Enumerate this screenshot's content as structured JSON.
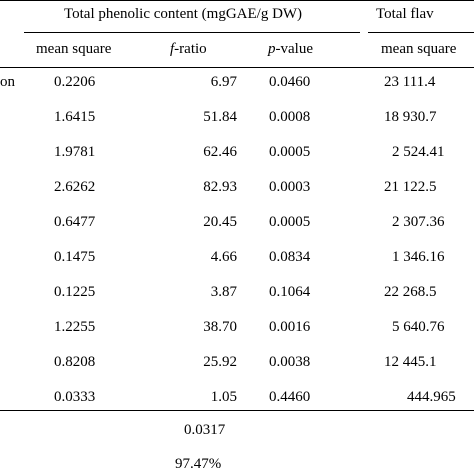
{
  "header": {
    "group_phenolic": "Total phenolic content (mgGAE/g DW)",
    "group_flavonoid": "Total flav",
    "col_ms1": "mean square",
    "col_f_italic": "f",
    "col_f_rest": "-ratio",
    "col_p_italic": "p",
    "col_p_rest": "-value",
    "col_ms2": "mean square"
  },
  "rows": [
    {
      "label": "on",
      "ms": "0.2206",
      "f": "6.97",
      "p": "0.0460",
      "ms2": "23 111.4"
    },
    {
      "label": "",
      "ms": "1.6415",
      "f": "51.84",
      "p": "0.0008",
      "ms2": "18 930.7"
    },
    {
      "label": "",
      "ms": "1.9781",
      "f": "62.46",
      "p": "0.0005",
      "ms2": "2 524.41"
    },
    {
      "label": "",
      "ms": "2.6262",
      "f": "82.93",
      "p": "0.0003",
      "ms2": "21 122.5"
    },
    {
      "label": "",
      "ms": "0.6477",
      "f": "20.45",
      "p": "0.0005",
      "ms2": "2 307.36"
    },
    {
      "label": "",
      "ms": "0.1475",
      "f": "4.66",
      "p": "0.0834",
      "ms2": "1 346.16"
    },
    {
      "label": "",
      "ms": "0.1225",
      "f": "3.87",
      "p": "0.1064",
      "ms2": "22 268.5"
    },
    {
      "label": "",
      "ms": "1.2255",
      "f": "38.70",
      "p": "0.0016",
      "ms2": "5 640.76"
    },
    {
      "label": "",
      "ms": "0.8208",
      "f": "25.92",
      "p": "0.0038",
      "ms2": "12 445.1"
    },
    {
      "label": "",
      "ms": "0.0333",
      "f": "1.05",
      "p": "0.4460",
      "ms2": "444.965"
    }
  ],
  "footer": {
    "value1": "0.0317",
    "value2": "97.47%"
  }
}
